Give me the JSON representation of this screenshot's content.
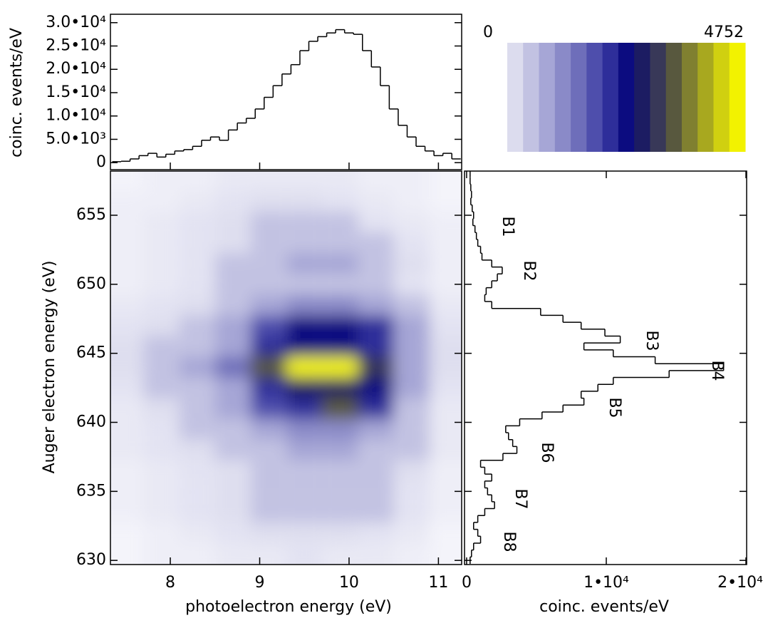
{
  "chart_data": [
    {
      "type": "line",
      "ylabel": "coinc. events/eV",
      "color": "#000000",
      "xlim": [
        7.33,
        11.26
      ],
      "ylim": [
        -1500,
        31800
      ],
      "yticks": [
        {
          "value": 30000,
          "label": "3.0•10⁴"
        },
        {
          "value": 25000,
          "label": "2.5•10⁴"
        },
        {
          "value": 20000,
          "label": "2.0•10⁴"
        },
        {
          "value": 15000,
          "label": "1.5•10⁴"
        },
        {
          "value": 10000,
          "label": "1.0•10⁴"
        },
        {
          "value": 5000,
          "label": "5.0•10³"
        },
        0
      ],
      "x": [
        7.4,
        7.5,
        7.6,
        7.7,
        7.8,
        7.9,
        8.0,
        8.1,
        8.2,
        8.3,
        8.4,
        8.5,
        8.6,
        8.7,
        8.8,
        8.9,
        9.0,
        9.1,
        9.2,
        9.3,
        9.4,
        9.5,
        9.6,
        9.7,
        9.8,
        9.9,
        10.0,
        10.1,
        10.2,
        10.3,
        10.4,
        10.5,
        10.6,
        10.7,
        10.8,
        10.9,
        11.0,
        11.1,
        11.2
      ],
      "values": [
        200,
        300,
        800,
        1500,
        2000,
        1200,
        1800,
        2500,
        2800,
        3500,
        4800,
        5500,
        4800,
        7000,
        8500,
        9500,
        11500,
        14000,
        16500,
        19000,
        21000,
        24000,
        26000,
        27000,
        27800,
        28500,
        27800,
        27500,
        24000,
        20500,
        16500,
        11500,
        8000,
        5500,
        3500,
        2500,
        1500,
        2000,
        800
      ]
    },
    {
      "type": "heatmap",
      "xlabel": "photoelectron energy (eV)",
      "ylabel": "Auger electron energy (eV)",
      "xlim": [
        7.33,
        11.26
      ],
      "xticks": [
        8,
        9,
        10,
        11
      ],
      "ylim": [
        629.7,
        658.2
      ],
      "yticks": [
        655,
        650,
        645,
        640,
        635,
        630
      ],
      "x": [
        7.5,
        7.9,
        8.3,
        8.7,
        9.1,
        9.5,
        9.9,
        10.3,
        10.7,
        11.1
      ],
      "y": [
        657.5,
        656,
        654.5,
        653,
        651.5,
        650,
        648.5,
        647,
        645.5,
        644,
        642.5,
        641,
        639.5,
        638,
        636.5,
        635,
        633.5,
        632,
        630.5
      ],
      "z": [
        [
          100,
          150,
          150,
          200,
          200,
          200,
          200,
          150,
          150,
          100
        ],
        [
          150,
          150,
          200,
          250,
          300,
          300,
          250,
          200,
          150,
          100
        ],
        [
          150,
          200,
          250,
          300,
          350,
          400,
          350,
          250,
          200,
          150
        ],
        [
          150,
          200,
          250,
          300,
          450,
          500,
          450,
          350,
          250,
          150
        ],
        [
          150,
          200,
          250,
          350,
          600,
          800,
          750,
          600,
          300,
          150
        ],
        [
          150,
          200,
          250,
          350,
          500,
          600,
          550,
          450,
          250,
          150
        ],
        [
          200,
          250,
          300,
          500,
          900,
          1100,
          1000,
          800,
          400,
          200
        ],
        [
          250,
          300,
          400,
          700,
          1800,
          2300,
          2500,
          2000,
          700,
          250
        ],
        [
          300,
          400,
          500,
          900,
          2000,
          2400,
          2300,
          2100,
          800,
          300
        ],
        [
          300,
          500,
          700,
          1300,
          3200,
          4600,
          4752,
          3000,
          900,
          300
        ],
        [
          250,
          400,
          500,
          900,
          2200,
          2800,
          2600,
          2300,
          700,
          250
        ],
        [
          200,
          300,
          400,
          800,
          1700,
          2200,
          3200,
          2200,
          600,
          200
        ],
        [
          200,
          250,
          350,
          500,
          900,
          1100,
          1100,
          800,
          400,
          200
        ],
        [
          200,
          250,
          300,
          400,
          600,
          700,
          700,
          600,
          350,
          200
        ],
        [
          150,
          200,
          250,
          300,
          450,
          500,
          500,
          400,
          300,
          150
        ],
        [
          150,
          200,
          250,
          300,
          400,
          450,
          450,
          350,
          250,
          150
        ],
        [
          150,
          200,
          250,
          300,
          350,
          450,
          400,
          350,
          250,
          150
        ],
        [
          100,
          150,
          200,
          250,
          300,
          300,
          300,
          250,
          200,
          100
        ],
        [
          100,
          150,
          150,
          200,
          200,
          250,
          200,
          200,
          150,
          100
        ]
      ],
      "zlim": [
        0,
        4752
      ],
      "zticks": [
        0,
        4752
      ],
      "colors": [
        "#dcdcee",
        "#c2c2e2",
        "#a6a6d6",
        "#8a8ac8",
        "#6e6eba",
        "#4e4eac",
        "#2e2e9a",
        "#0c0c80",
        "#1c1c62",
        "#383858",
        "#58583e",
        "#808030",
        "#a8a81f",
        "#d0d010",
        "#f2f200"
      ]
    },
    {
      "type": "profile",
      "xlabel": "coinc. events/eV",
      "color": "#000000",
      "xlim": [
        -150,
        20050
      ],
      "xticks": [
        0,
        {
          "value": 10000,
          "label": "1•10⁴"
        },
        {
          "value": 20000,
          "label": "2•10⁴"
        }
      ],
      "ylim": [
        629.7,
        658.2
      ],
      "y": [
        658,
        657.5,
        657,
        656.5,
        656,
        655.5,
        655,
        654.5,
        654,
        653.5,
        653,
        652.5,
        652,
        651.5,
        651,
        650.5,
        650,
        649.5,
        649,
        648.5,
        648,
        647.5,
        647,
        646.5,
        646,
        645.5,
        645,
        644.5,
        644,
        643.5,
        643,
        642.5,
        642,
        641.5,
        641,
        640.5,
        640,
        639.5,
        639,
        638.5,
        638,
        637.5,
        637,
        636.5,
        636,
        635.5,
        635,
        634.5,
        634,
        633.5,
        633,
        632.5,
        632,
        631.5,
        631,
        630.5,
        630
      ],
      "values": [
        250,
        250,
        300,
        350,
        300,
        400,
        500,
        450,
        600,
        700,
        800,
        1000,
        1100,
        1800,
        2550,
        2200,
        1800,
        1400,
        1300,
        1800,
        5300,
        6900,
        8200,
        9900,
        11000,
        8400,
        10500,
        13500,
        18400,
        14500,
        10500,
        9400,
        8200,
        8400,
        6900,
        5400,
        3800,
        2800,
        3000,
        3300,
        3600,
        2600,
        1000,
        1300,
        1800,
        1300,
        1500,
        1800,
        2000,
        1300,
        800,
        500,
        800,
        1000,
        500,
        350,
        250
      ],
      "annotations": [
        "B1",
        "B2",
        "B3",
        "B4",
        "B5",
        "B6",
        "B7",
        "B8"
      ]
    }
  ]
}
